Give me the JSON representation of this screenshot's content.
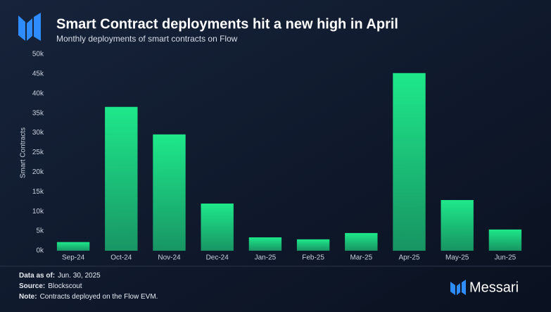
{
  "chart_data": {
    "type": "bar",
    "title": "Smart Contract deployments hit a new high in April",
    "subtitle": "Monthly deployments of smart contracts on Flow",
    "y_label": "Smart Contracts",
    "categories": [
      "Sep-24",
      "Oct-24",
      "Nov-24",
      "Dec-24",
      "Jan-25",
      "Feb-25",
      "Mar-25",
      "Apr-25",
      "May-25",
      "Jun-25"
    ],
    "values": [
      2200,
      36600,
      29600,
      12000,
      3400,
      2900,
      4500,
      45200,
      12900,
      5400
    ],
    "color": "#1ee88a",
    "ylim": [
      0,
      50000
    ],
    "yticks": [
      {
        "value": 0,
        "label": "0k"
      },
      {
        "value": 5000,
        "label": "5k"
      },
      {
        "value": 10000,
        "label": "10k"
      },
      {
        "value": 15000,
        "label": "15k"
      },
      {
        "value": 20000,
        "label": "20k"
      },
      {
        "value": 25000,
        "label": "25k"
      },
      {
        "value": 30000,
        "label": "30k"
      },
      {
        "value": 35000,
        "label": "35k"
      },
      {
        "value": 40000,
        "label": "40k"
      },
      {
        "value": 45000,
        "label": "45k"
      },
      {
        "value": 50000,
        "label": "50k"
      }
    ],
    "grid": false,
    "notes": [
      {
        "label": "Data as of:",
        "text": "Jun. 30, 2025"
      },
      {
        "label": "Source:",
        "text": "Blockscout"
      },
      {
        "label": "Note:",
        "text": "Contracts deployed on the Flow EVM."
      }
    ],
    "brand": "Messari"
  }
}
